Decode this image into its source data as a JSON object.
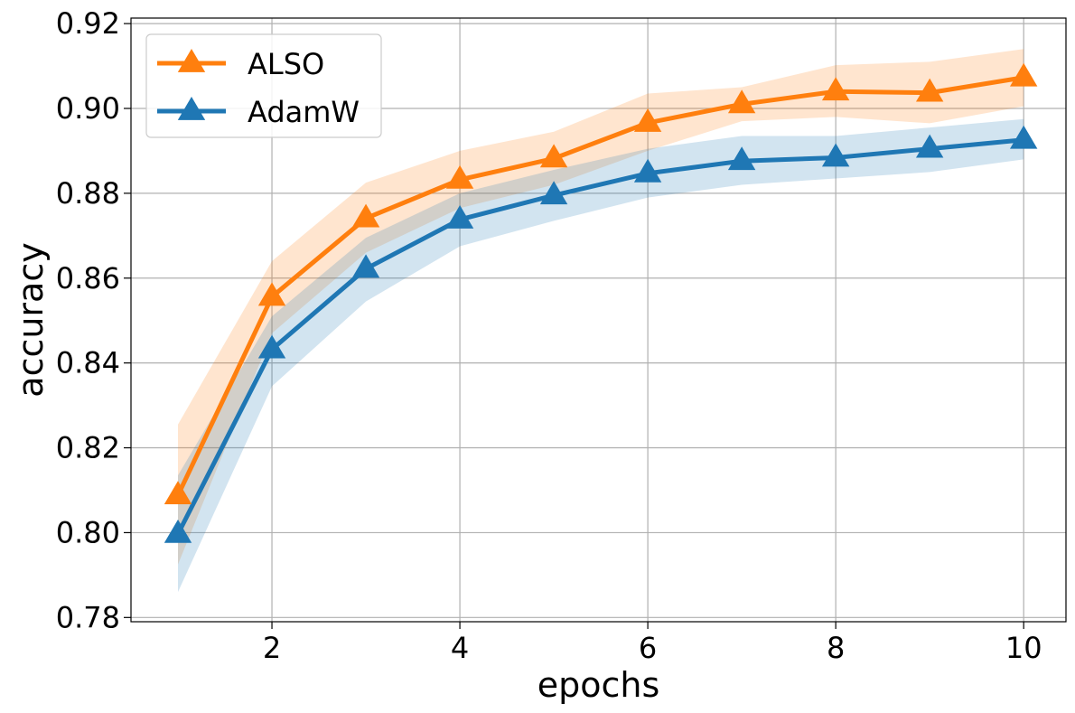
{
  "chart_data": {
    "type": "line",
    "xlabel": "epochs",
    "ylabel": "accuracy",
    "xlim": [
      0.5,
      10.45
    ],
    "ylim": [
      0.779,
      0.9213
    ],
    "xticks": [
      2,
      4,
      6,
      8,
      10
    ],
    "xtick_labels": [
      "2",
      "4",
      "6",
      "8",
      "10"
    ],
    "yticks": [
      0.78,
      0.8,
      0.82,
      0.84,
      0.86,
      0.88,
      0.9,
      0.92
    ],
    "ytick_labels": [
      "0.78",
      "0.80",
      "0.82",
      "0.84",
      "0.86",
      "0.88",
      "0.90",
      "0.92"
    ],
    "grid": true,
    "legend_position": "top-left",
    "x": [
      1,
      2,
      3,
      4,
      5,
      6,
      7,
      8,
      9,
      10
    ],
    "series": [
      {
        "name": "ALSO",
        "color": "#ff7f0e",
        "marker": "triangle",
        "values": [
          0.8088,
          0.8556,
          0.8741,
          0.8832,
          0.8882,
          0.8966,
          0.901,
          0.904,
          0.9037,
          0.9073
        ],
        "lower": [
          0.7925,
          0.847,
          0.866,
          0.8765,
          0.882,
          0.89,
          0.897,
          0.898,
          0.8965,
          0.9005
        ],
        "upper": [
          0.8255,
          0.864,
          0.8825,
          0.89,
          0.8945,
          0.9035,
          0.905,
          0.9102,
          0.911,
          0.914
        ]
      },
      {
        "name": "AdamW",
        "color": "#1f77b4",
        "marker": "triangle",
        "values": [
          0.7997,
          0.8432,
          0.8622,
          0.8738,
          0.8795,
          0.8847,
          0.8876,
          0.8884,
          0.8905,
          0.8926
        ],
        "lower": [
          0.786,
          0.8345,
          0.8545,
          0.8675,
          0.8735,
          0.879,
          0.882,
          0.8835,
          0.885,
          0.888
        ],
        "upper": [
          0.8135,
          0.851,
          0.8695,
          0.88,
          0.8855,
          0.8905,
          0.8935,
          0.8935,
          0.8955,
          0.8975
        ]
      }
    ]
  }
}
